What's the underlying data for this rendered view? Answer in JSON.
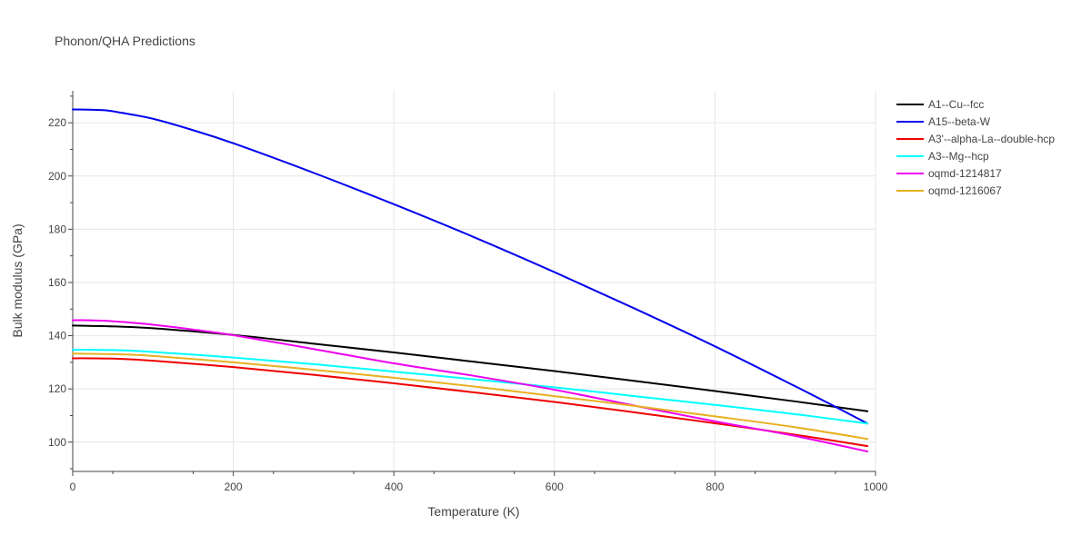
{
  "chart_data": {
    "type": "line",
    "title": "Phonon/QHA Predictions",
    "xlabel": "Temperature (K)",
    "ylabel": "Bulk modulus (GPa)",
    "xlim": [
      0,
      1000
    ],
    "ylim": [
      89,
      232
    ],
    "x_ticks": [
      0,
      200,
      400,
      600,
      800,
      1000
    ],
    "y_ticks": [
      100,
      120,
      140,
      160,
      180,
      200,
      220
    ],
    "grid": true,
    "legend_position": "top-right, outside plot",
    "series": [
      {
        "name": "A1--Cu--fcc",
        "color": "#000000",
        "x": [
          0,
          20,
          60,
          100,
          200,
          300,
          400,
          500,
          600,
          700,
          800,
          900,
          990
        ],
        "y": [
          143.8,
          143.7,
          143.4,
          142.8,
          140.3,
          137.0,
          133.7,
          130.2,
          126.7,
          123.0,
          119.2,
          115.3,
          111.6
        ]
      },
      {
        "name": "A15--beta-W",
        "color": "#0000ee",
        "x": [
          0,
          20,
          40,
          60,
          100,
          150,
          200,
          300,
          400,
          500,
          600,
          700,
          800,
          900,
          950,
          990
        ],
        "y": [
          225.0,
          224.9,
          224.7,
          223.8,
          221.5,
          217.2,
          212.3,
          201.2,
          189.4,
          177.0,
          163.9,
          150.2,
          136.0,
          121.0,
          113.3,
          107.0
        ]
      },
      {
        "name": "A3'--alpha-La--double-hcp",
        "color": "#ee0000",
        "x": [
          0,
          20,
          60,
          100,
          200,
          300,
          400,
          500,
          600,
          700,
          800,
          900,
          990
        ],
        "y": [
          131.5,
          131.5,
          131.3,
          130.6,
          128.2,
          125.3,
          122.1,
          118.7,
          115.1,
          111.2,
          107.1,
          102.8,
          98.5
        ]
      },
      {
        "name": "A3--Mg--hcp",
        "color": "#00ffff",
        "x": [
          0,
          20,
          60,
          100,
          200,
          300,
          400,
          500,
          600,
          700,
          800,
          900,
          990
        ],
        "y": [
          134.7,
          134.7,
          134.5,
          133.9,
          131.8,
          129.3,
          126.5,
          123.6,
          120.6,
          117.3,
          114.0,
          110.5,
          107.0
        ]
      },
      {
        "name": "oqmd-1214817",
        "color": "#ee00ee",
        "x": [
          0,
          20,
          40,
          60,
          100,
          150,
          200,
          300,
          400,
          500,
          600,
          700,
          800,
          900,
          990
        ],
        "y": [
          145.8,
          145.8,
          145.6,
          145.2,
          144.1,
          142.3,
          140.2,
          135.0,
          129.6,
          124.9,
          119.7,
          113.7,
          107.8,
          102.3,
          96.5
        ]
      },
      {
        "name": "oqmd-1216067",
        "color": "#e8b020",
        "x": [
          0,
          20,
          60,
          100,
          200,
          300,
          400,
          500,
          600,
          700,
          800,
          900,
          990
        ],
        "y": [
          133.3,
          133.2,
          133.0,
          132.4,
          130.0,
          127.2,
          124.2,
          120.9,
          117.3,
          113.6,
          109.7,
          105.6,
          101.2
        ]
      }
    ]
  }
}
